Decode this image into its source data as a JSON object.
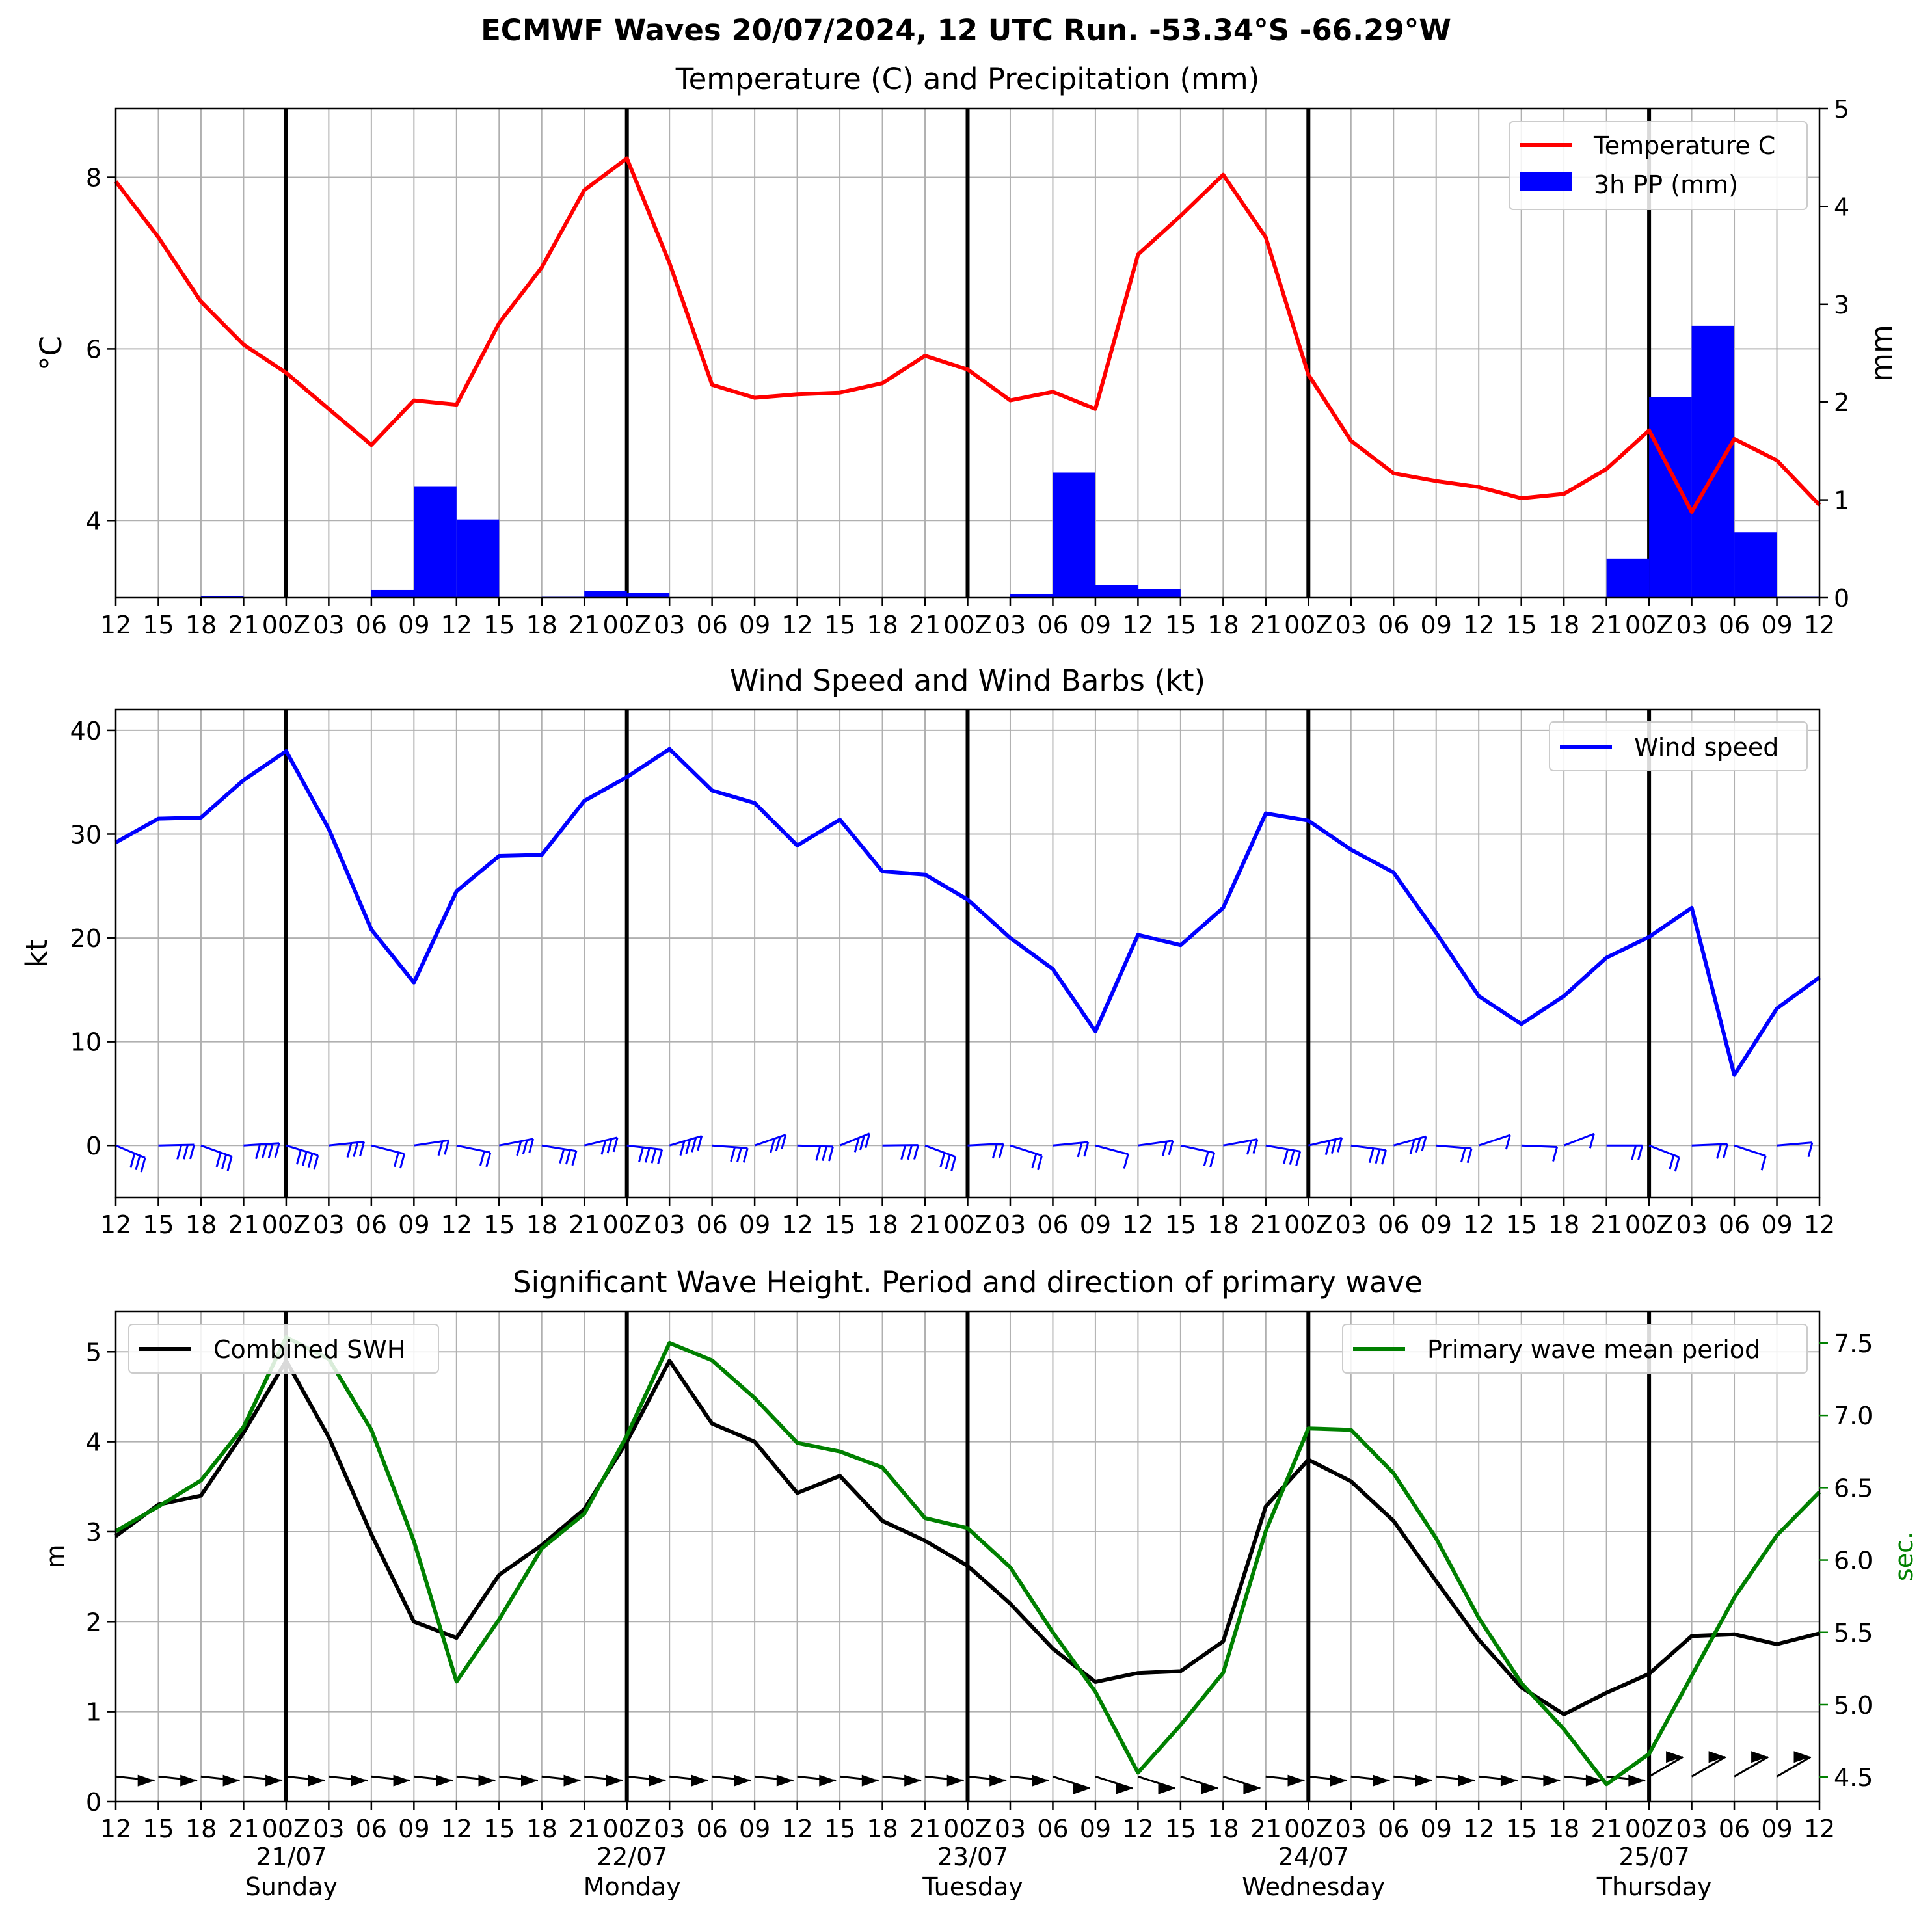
{
  "suptitle": "ECMWF Waves 20/07/2024, 12 UTC Run. -53.34°S -66.29°W",
  "colors": {
    "temperature": "#ff0000",
    "precip": "#0000ff",
    "wind": "#0000ff",
    "swh": "#000000",
    "period": "#008000",
    "grid": "#b0b0b0",
    "day_line": "#000000"
  },
  "chart_data": [
    {
      "type": "line",
      "title": "Temperature (C) and Precipitation (mm)",
      "ylabel": "°C",
      "ylabel_right": "mm",
      "ylim": [
        3.1,
        8.8
      ],
      "ylim_right": [
        0,
        5
      ],
      "yticks": [
        4,
        6,
        8
      ],
      "yticks_right": [
        0,
        1,
        2,
        3,
        4,
        5
      ],
      "legend": "top-right",
      "grid": true,
      "series": [
        {
          "name": "Temperature C",
          "type": "line",
          "axis": "left",
          "values": [
            7.95,
            7.3,
            6.55,
            6.05,
            5.72,
            5.3,
            4.88,
            5.4,
            5.35,
            6.3,
            6.95,
            7.85,
            8.22,
            7.0,
            5.58,
            5.43,
            5.47,
            5.49,
            5.6,
            5.92,
            5.76,
            5.4,
            5.5,
            5.3,
            7.1,
            7.55,
            8.03,
            7.3,
            5.7,
            4.93,
            4.55,
            4.46,
            4.39,
            4.26,
            4.31,
            4.6,
            5.05,
            4.1,
            4.95,
            4.7,
            4.18
          ]
        },
        {
          "name": "3h PP (mm)",
          "type": "bar",
          "axis": "right",
          "values": [
            0,
            0,
            0.02,
            0,
            0,
            0,
            0.08,
            1.14,
            0.8,
            0,
            0.01,
            0.07,
            0.05,
            0,
            0,
            0,
            0,
            0,
            0,
            0,
            0,
            0.04,
            1.28,
            0.13,
            0.09,
            0,
            0,
            0,
            0,
            0,
            0,
            0,
            0,
            0,
            0,
            0.4,
            2.05,
            2.78,
            0.67,
            0.01
          ]
        }
      ]
    },
    {
      "type": "line",
      "title": "Wind Speed and Wind Barbs (kt)",
      "ylabel": "kt",
      "ylim": [
        -5,
        42
      ],
      "yticks": [
        0,
        10,
        20,
        30,
        40
      ],
      "legend": "top-right",
      "grid": true,
      "series": [
        {
          "name": "Wind speed",
          "values": [
            29.2,
            31.5,
            31.6,
            35.2,
            38,
            30.5,
            20.8,
            15.7,
            24.5,
            27.9,
            28,
            33.2,
            35.5,
            38.2,
            34.2,
            33,
            28.9,
            31.4,
            26.4,
            26.1,
            23.7,
            20,
            17,
            11,
            20.3,
            19.3,
            22.9,
            32,
            31.3,
            28.5,
            26.3,
            20.5,
            14.4,
            11.7,
            14.4,
            18.1,
            20.1,
            22.9,
            6.8,
            13.2,
            16.2
          ]
        }
      ]
    },
    {
      "type": "line",
      "title": "Significant Wave Height. Period and direction of primary wave",
      "ylabel": "m",
      "ylabel_right": "sec.",
      "ylim": [
        0,
        5.45
      ],
      "ylim_right": [
        4.33,
        7.72
      ],
      "yticks": [
        0,
        1,
        2,
        3,
        4,
        5
      ],
      "yticks_right": [
        4.5,
        5.0,
        5.5,
        6.0,
        6.5,
        7.0,
        7.5
      ],
      "grid": true,
      "series": [
        {
          "name": "Combined SWH",
          "axis": "left",
          "legend": "top-left",
          "values": [
            2.95,
            3.3,
            3.4,
            4.1,
            4.9,
            4.05,
            2.97,
            2.0,
            1.82,
            2.52,
            2.85,
            3.25,
            4.0,
            4.9,
            4.2,
            4.0,
            3.43,
            3.62,
            3.12,
            2.9,
            2.62,
            2.2,
            1.7,
            1.33,
            1.43,
            1.45,
            1.78,
            3.28,
            3.8,
            3.56,
            3.12,
            2.45,
            1.8,
            1.27,
            0.97,
            1.21,
            1.42,
            1.84,
            1.86,
            1.75,
            1.87
          ]
        },
        {
          "name": "Primary wave mean period",
          "axis": "right",
          "legend": "top-right",
          "values": [
            6.2,
            6.37,
            6.55,
            6.92,
            7.54,
            7.39,
            6.9,
            6.13,
            5.16,
            5.59,
            6.08,
            6.32,
            6.86,
            7.5,
            7.38,
            7.12,
            6.81,
            6.75,
            6.64,
            6.29,
            6.22,
            5.95,
            5.5,
            5.09,
            4.53,
            4.86,
            5.22,
            6.2,
            6.91,
            6.9,
            6.6,
            6.15,
            5.6,
            5.15,
            4.83,
            4.45,
            4.66,
            5.2,
            5.74,
            6.17,
            6.47
          ]
        }
      ]
    }
  ],
  "x_tick_labels_upper": [
    "12",
    "15",
    "18",
    "21",
    "00Z",
    "03",
    "06",
    "09",
    "12",
    "15",
    "18",
    "21",
    "00Z",
    "03",
    "06",
    "09",
    "12",
    "15",
    "18",
    "21",
    "00Z",
    "03",
    "06",
    "09",
    "12",
    "15",
    "18",
    "21",
    "00Z",
    "03",
    "06",
    "09",
    "12",
    "15",
    "18",
    "21",
    "00Z",
    "03",
    "06",
    "09",
    "12"
  ],
  "x_tick_labels_bottom": [
    "12",
    "15",
    "18",
    "21",
    "00Z",
    "03",
    "06",
    "09",
    "12",
    "15",
    "18",
    "21",
    "00Z",
    "03",
    "06",
    "09",
    "12",
    "15",
    "18",
    "21",
    "00Z",
    "03",
    "06",
    "09",
    "12",
    "15",
    "18",
    "21",
    "00Z",
    "03",
    "06",
    "09",
    "12",
    "15",
    "18",
    "21",
    "00Z",
    "03",
    "06",
    "09",
    "12"
  ],
  "day_labels": [
    {
      "date": "21/07",
      "weekday": "Sunday"
    },
    {
      "date": "22/07",
      "weekday": "Monday"
    },
    {
      "date": "23/07",
      "weekday": "Tuesday"
    },
    {
      "date": "24/07",
      "weekday": "Wednesday"
    },
    {
      "date": "25/07",
      "weekday": "Thursday"
    }
  ],
  "day_line_indices": [
    4,
    12,
    20,
    28,
    36
  ]
}
